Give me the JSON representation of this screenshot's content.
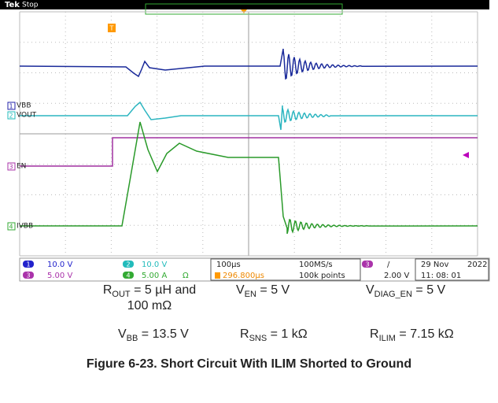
{
  "screen": {
    "brand": "Tek",
    "status": "Stop",
    "trigger_marker": "T",
    "channels": [
      {
        "number": "1",
        "label": "VBB"
      },
      {
        "number": "2",
        "label": "VOUT"
      },
      {
        "number": "3",
        "label": "EN"
      },
      {
        "number": "4",
        "label": "IVBB"
      }
    ],
    "readout": {
      "ch1": "10.0 V",
      "ch2": "10.0 V",
      "ch3": "5.00 V",
      "ch4": "5.00 A",
      "ch4_unit": "Ω",
      "timebase": "100µs",
      "delay": "296.800µs",
      "sample_rate": "100MS/s",
      "record": "100k points",
      "trigger_channel": "3",
      "trigger_slope": "/",
      "trigger_level": "2.00 V",
      "date": "29 Nov",
      "year": "2022",
      "time": "11: 08: 01"
    }
  },
  "conditions": [
    {
      "symbol": "R",
      "sub": "OUT",
      "text": " = 5 µH and 100 mΩ"
    },
    {
      "symbol": "V",
      "sub": "EN",
      "text": " = 5 V"
    },
    {
      "symbol": "V",
      "sub": "DIAG_EN",
      "text": " = 5 V"
    },
    {
      "symbol": "V",
      "sub": "BB",
      "text": " = 13.5 V"
    },
    {
      "symbol": "R",
      "sub": "SNS",
      "text": " = 1 kΩ"
    },
    {
      "symbol": "R",
      "sub": "ILIM",
      "text": " = 7.15 kΩ"
    }
  ],
  "caption": "Figure 6-23. Short Circuit With ILIM Shorted to Ground"
}
